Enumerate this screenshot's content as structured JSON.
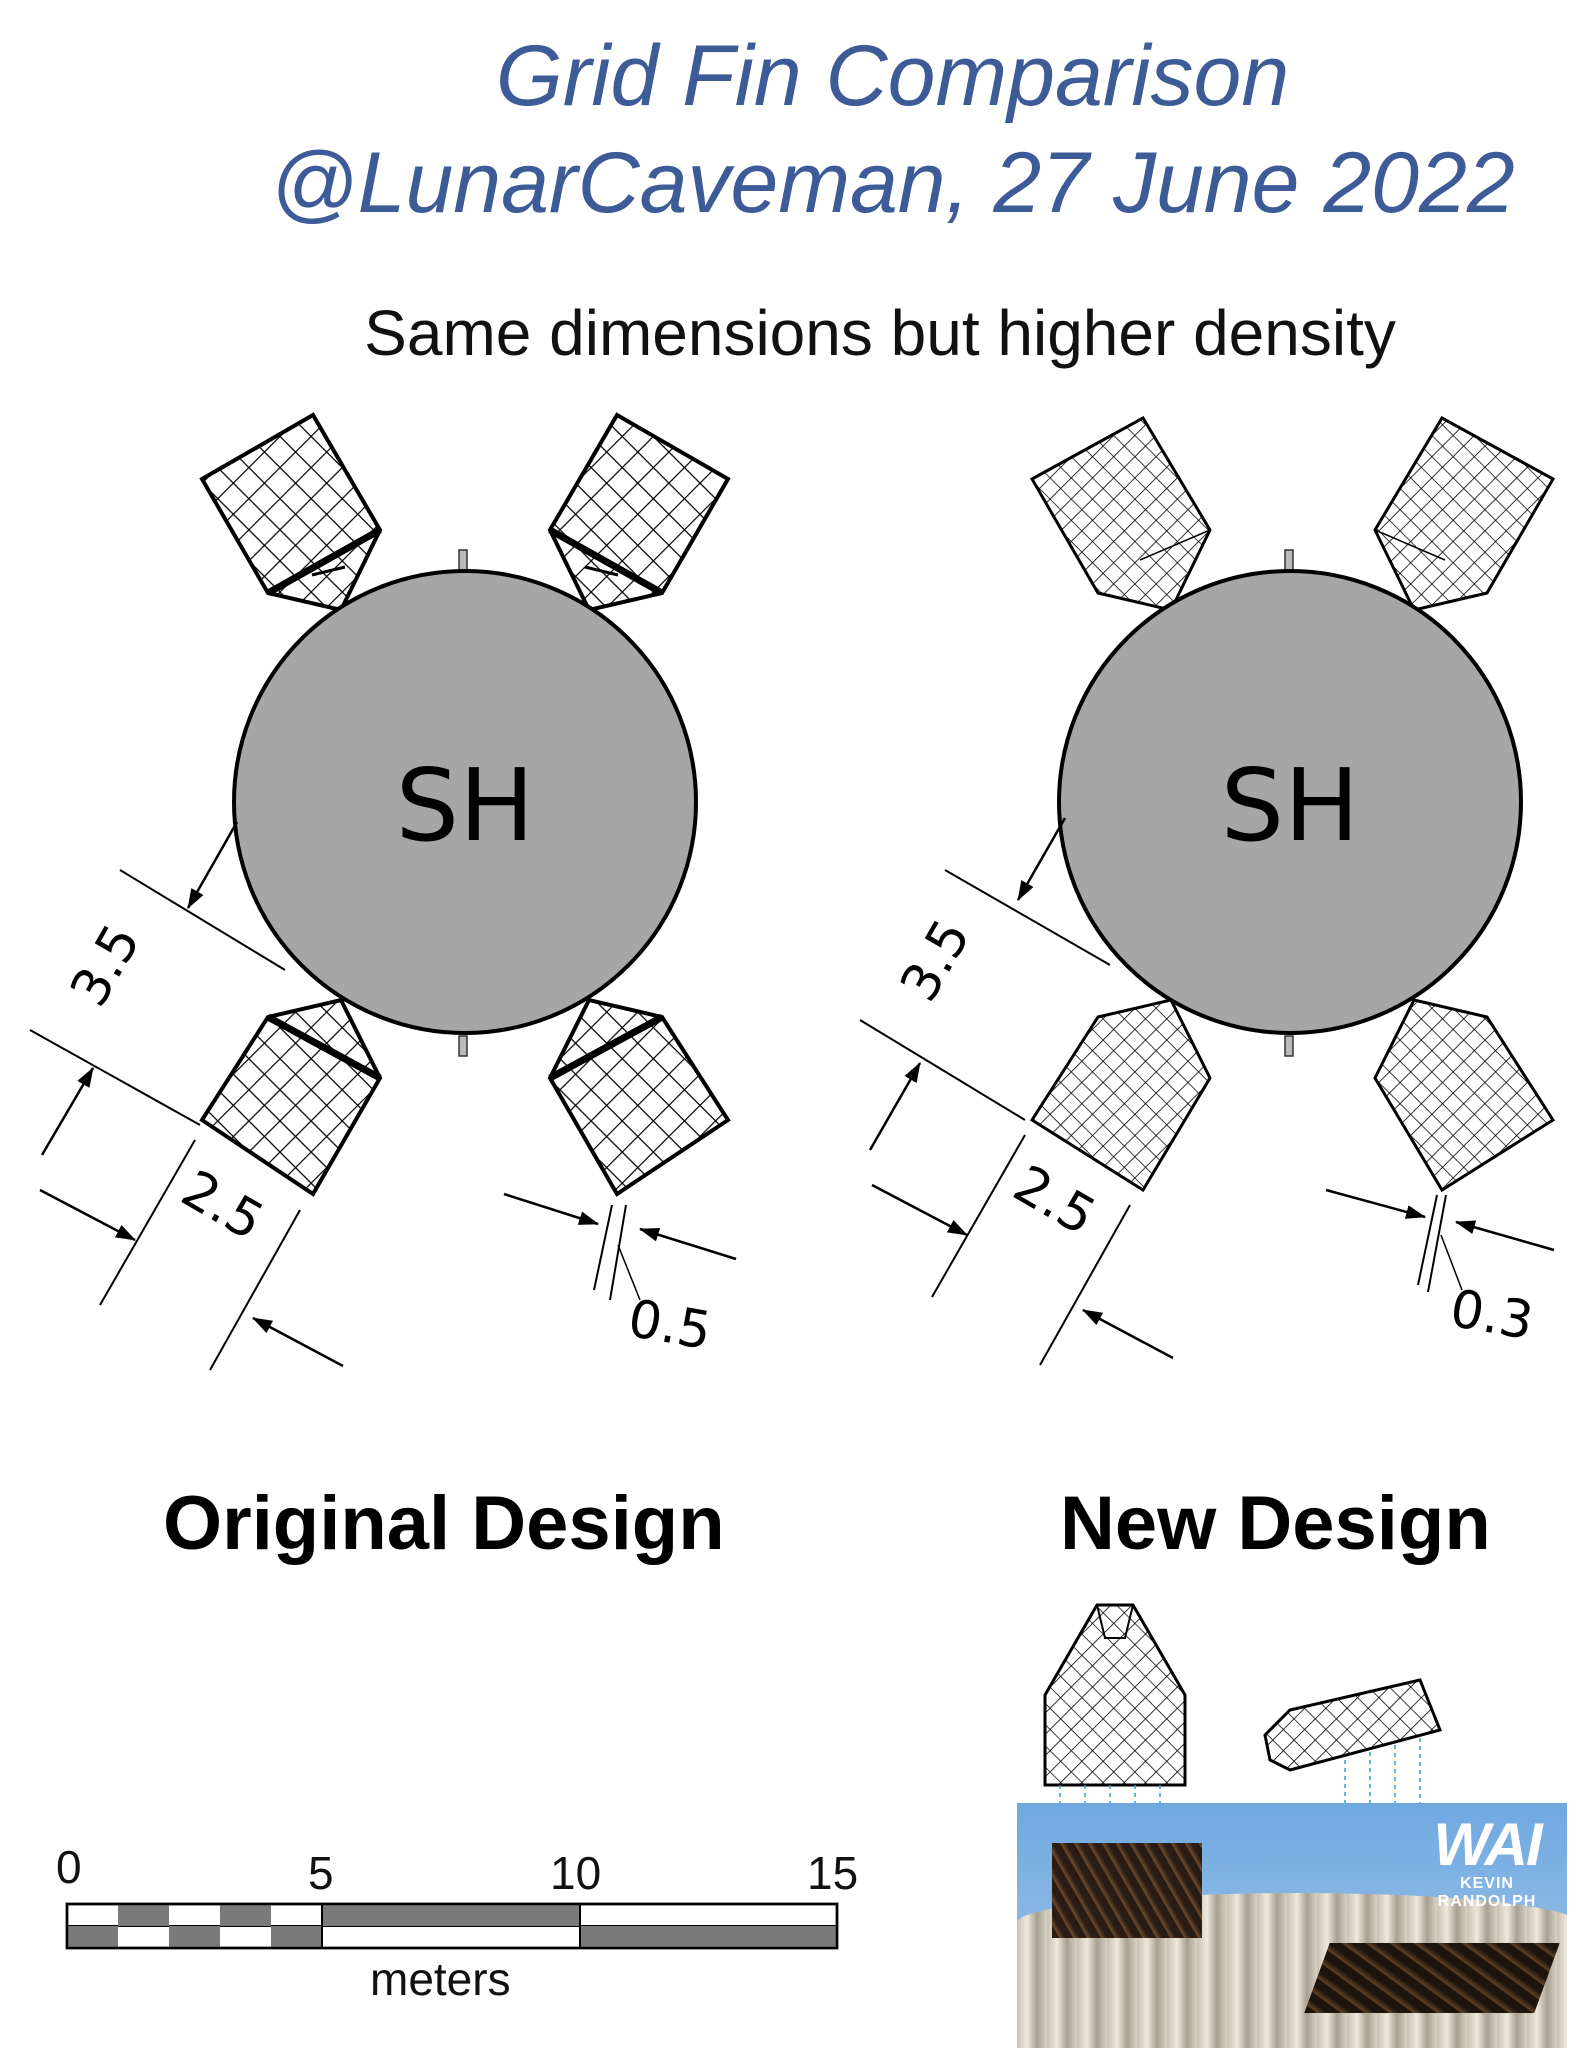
{
  "header": {
    "title_line1": "Grid Fin Comparison",
    "title_line2": "@LunarCaveman, 27 June 2022",
    "subtitle": "Same dimensions but higher density"
  },
  "original": {
    "label": "Original Design",
    "body_label": "SH",
    "dim_fin_length": "3.5",
    "dim_fin_width": "2.5",
    "dim_thickness": "0.5"
  },
  "new": {
    "label": "New Design",
    "body_label": "SH",
    "dim_fin_length": "3.5",
    "dim_fin_width": "2.5",
    "dim_thickness": "0.3"
  },
  "scale_bar": {
    "ticks": [
      "0",
      "5",
      "10",
      "15"
    ],
    "unit": "meters"
  },
  "photo": {
    "credit_logo": "WAI",
    "credit_name": "KEVIN RANDOLPH"
  },
  "colors": {
    "title": "#3d5b96",
    "booster_fill": "#a6a6a6",
    "scale_dark": "#7a7a7a"
  }
}
